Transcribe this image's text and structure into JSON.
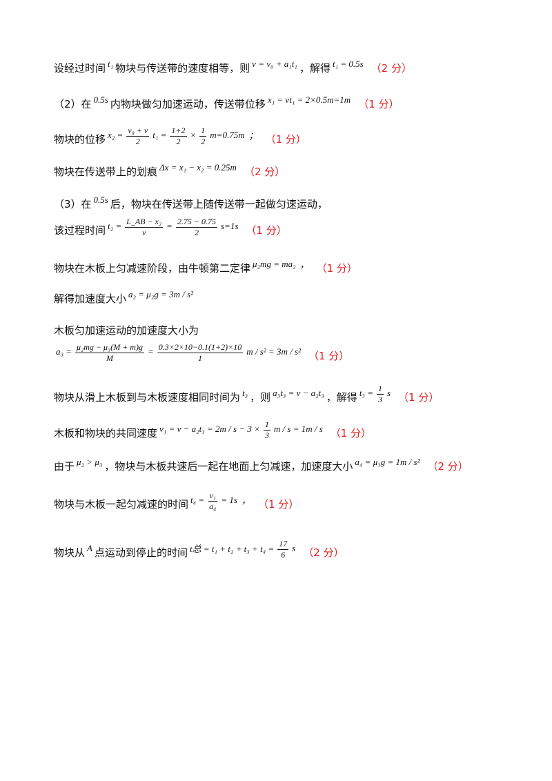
{
  "lines": [
    [
      "设经过时间",
      "t₁",
      "物块与传送带的速度相等，则",
      "v = v₀ + a₁t₁",
      "，解得",
      "t₁ = 0.5s",
      "（2 分）"
    ],
    [
      "（2）在",
      "0.5s",
      "内物块做匀加速运动，传送带位移",
      "x₁ = vt₁ = 2×0.5m=1m",
      "（1 分）"
    ],
    [
      "物块的位移",
      "x₂ =",
      {
        "num": "v₀ + v",
        "den": "2"
      },
      "t₁ =",
      {
        "num": "1+2",
        "den": "2"
      },
      "×",
      {
        "num": "1",
        "den": "2"
      },
      "m=0.75m",
      "；",
      "（1 分）"
    ],
    [
      "物块在传送带上的划痕",
      "Δx = x₁ − x₂ = 0.25m",
      "（2 分）"
    ],
    [
      "（3）在",
      "0.5s",
      "后，物块在传送带上随传送带一起做匀速运动，"
    ],
    [
      "该过程时间",
      "t₂ =",
      {
        "num": "L_AB − x₂",
        "den": "v"
      },
      "=",
      {
        "num": "2.75 − 0.75",
        "den": "2"
      },
      "s=1s",
      "（1 分）"
    ],
    [
      "物块在木板上匀减速阶段，由牛顿第二定律",
      "μ₂mg = ma₂",
      "，",
      "（1 分）"
    ],
    [
      "解得加速度大小",
      "a₂ = μ₂g = 3m / s²"
    ],
    [
      "木板匀加速运动的加速度大小为"
    ],
    [
      "a₃ =",
      {
        "num": "μ₂mg − μ₃(M + m)g",
        "den": "M"
      },
      "=",
      {
        "num": "0.3×2×10−0.1(1+2)×10",
        "den": "1"
      },
      "m / s² = 3m / s²",
      "（1 分）"
    ],
    [
      "物块从滑上木板到与木板速度相同时间为",
      "t₃",
      "，则",
      "a₃t₃ = v − a₂t₃",
      "，解得",
      "t₃ =",
      {
        "num": "1",
        "den": "3"
      },
      "s",
      "（1 分）"
    ],
    [
      "木板和物块的共同速度",
      "v₁ = v − a₂t₃ = 2m / s − 3 ×",
      {
        "num": "1",
        "den": "3"
      },
      "m / s = 1m / s",
      "（1 分）"
    ],
    [
      "由于",
      "μ₂ > μ₃",
      "，物块与木板共速后一起在地面上匀减速，加速度大小",
      "a₄ = μ₃g = 1m / s²",
      "（2 分）"
    ],
    [
      "物块与木板一起匀减速的时间",
      "t₄ =",
      {
        "num": "v₁",
        "den": "a₄"
      },
      "= 1s",
      "，",
      "（1 分）"
    ],
    [
      "物块从",
      "A",
      "点运动到停止的时间",
      "t总 = t₁ + t₂ + t₃ + t₄ =",
      {
        "num": "17",
        "den": "6"
      },
      "s",
      "（2 分）"
    ]
  ]
}
